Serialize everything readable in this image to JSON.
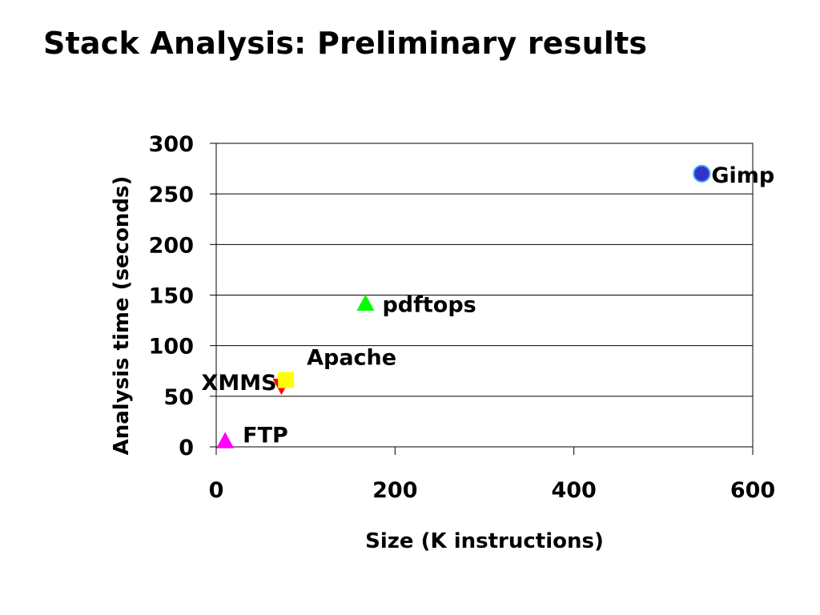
{
  "slide": {
    "title": "Stack Analysis: Preliminary results"
  },
  "chart_data": {
    "type": "scatter",
    "xlabel": "Size (K instructions)",
    "ylabel": "Analysis time (seconds)",
    "xlim": [
      0,
      600
    ],
    "ylim": [
      0,
      300
    ],
    "xticks": [
      0,
      200,
      400,
      600
    ],
    "yticks": [
      0,
      50,
      100,
      150,
      200,
      250,
      300
    ],
    "grid": "horizontal",
    "legend": "none",
    "points": [
      {
        "label": "FTP",
        "x": 10,
        "y": 6,
        "marker": "triangle",
        "color": "#ff00ff"
      },
      {
        "label": "XMMS",
        "x": 73,
        "y": 60,
        "marker": "triangle-down",
        "color": "#ff0000"
      },
      {
        "label": "Apache",
        "x": 78,
        "y": 66,
        "marker": "square",
        "color": "#ffff00"
      },
      {
        "label": "pdftops",
        "x": 167,
        "y": 142,
        "marker": "triangle",
        "color": "#00ff00"
      },
      {
        "label": "Gimp",
        "x": 543,
        "y": 270,
        "marker": "circle",
        "color": "#3333cc"
      }
    ]
  }
}
